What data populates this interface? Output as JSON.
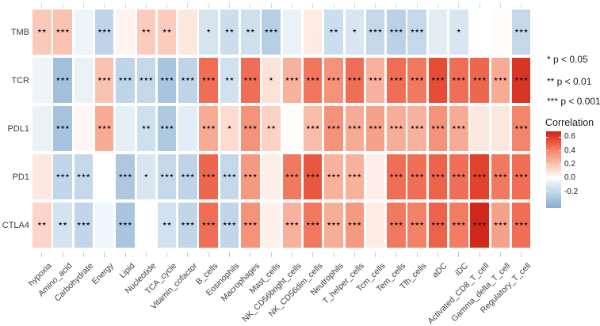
{
  "legend": {
    "sig_levels": [
      "* p < 0.05",
      "** p < 0.01",
      "*** p < 0.001"
    ],
    "correlation_title": "Correlation",
    "colorbar_ticks": [
      "0.6",
      "0.4",
      "0.2",
      "0.0",
      "-0.2"
    ]
  },
  "chart_data": {
    "type": "heatmap",
    "title": "",
    "rows": [
      "TMB",
      "TCR",
      "PDL1",
      "PD1",
      "CTLA4"
    ],
    "columns": [
      "hypoxia",
      "Amino_acid",
      "Carbohydrate",
      "Energy",
      "Lipid",
      "Nucleotide",
      "TCA_cycle",
      "Vitamin_cofactor",
      "B_cells",
      "Eosinophils",
      "Macrophages",
      "Mast_cells",
      "NK_CD56bright_cells",
      "NK_CD56dim_cells",
      "Neutrophils",
      "T_helper_cells",
      "Tcm_cells",
      "Tem_cells",
      "Tfh_cells",
      "aDC",
      "iDC",
      "Activated_CD8_T_cell",
      "Gamma_delta_T_cell",
      "Regulatory_T_cell"
    ],
    "values": [
      [
        0.18,
        0.2,
        -0.05,
        -0.22,
        0.04,
        0.17,
        0.17,
        0.08,
        -0.13,
        -0.17,
        -0.16,
        -0.25,
        -0.06,
        0.07,
        -0.17,
        -0.12,
        -0.2,
        -0.24,
        -0.2,
        -0.08,
        -0.12,
        0.0,
        0.01,
        -0.2
      ],
      [
        -0.05,
        -0.33,
        -0.06,
        0.2,
        -0.22,
        -0.2,
        -0.3,
        -0.22,
        0.46,
        -0.15,
        0.46,
        0.1,
        0.26,
        0.44,
        0.36,
        0.46,
        0.26,
        0.46,
        0.43,
        0.55,
        0.46,
        0.48,
        0.28,
        0.62
      ],
      [
        -0.06,
        -0.31,
        0.03,
        0.28,
        -0.07,
        -0.16,
        -0.28,
        -0.08,
        0.28,
        0.12,
        0.36,
        0.15,
        0.01,
        0.22,
        0.36,
        0.28,
        0.31,
        0.27,
        0.26,
        0.36,
        0.28,
        0.08,
        0.08,
        0.4
      ],
      [
        0.08,
        -0.21,
        -0.2,
        0.0,
        -0.29,
        -0.12,
        -0.2,
        -0.22,
        0.48,
        -0.2,
        0.34,
        0.06,
        0.43,
        0.52,
        0.26,
        0.26,
        0.06,
        0.46,
        0.46,
        0.49,
        0.46,
        0.58,
        0.43,
        0.46
      ],
      [
        0.14,
        -0.14,
        -0.21,
        -0.04,
        -0.3,
        0.0,
        -0.15,
        -0.21,
        0.46,
        -0.21,
        0.36,
        0.05,
        0.26,
        0.43,
        0.27,
        0.34,
        0.07,
        0.43,
        0.41,
        0.49,
        0.42,
        0.66,
        0.31,
        0.46
      ]
    ],
    "significance": [
      [
        "**",
        "***",
        "",
        "***",
        "",
        "**",
        "**",
        "",
        "*",
        "**",
        "**",
        "***",
        "",
        "",
        "**",
        "*",
        "***",
        "***",
        "***",
        "",
        "*",
        "",
        "",
        "***"
      ],
      [
        "",
        "***",
        "",
        "***",
        "***",
        "***",
        "***",
        "***",
        "***",
        "**",
        "***",
        "*",
        "***",
        "***",
        "***",
        "***",
        "***",
        "***",
        "***",
        "***",
        "***",
        "***",
        "***",
        "***"
      ],
      [
        "",
        "***",
        "",
        "***",
        "",
        "**",
        "***",
        "",
        "***",
        "*",
        "***",
        "**",
        "",
        "***",
        "***",
        "***",
        "***",
        "***",
        "***",
        "***",
        "***",
        "",
        "",
        "***"
      ],
      [
        "",
        "***",
        "***",
        "",
        "***",
        "*",
        "***",
        "***",
        "***",
        "***",
        "***",
        "",
        "***",
        "***",
        "***",
        "***",
        "",
        "***",
        "***",
        "***",
        "***",
        "***",
        "***",
        "***"
      ],
      [
        "**",
        "**",
        "***",
        "",
        "***",
        "",
        "**",
        "***",
        "***",
        "***",
        "***",
        "",
        "***",
        "***",
        "***",
        "***",
        "",
        "***",
        "***",
        "***",
        "***",
        "***",
        "***",
        "***"
      ]
    ],
    "significance_legend": {
      "*": "p < 0.05",
      "**": "p < 0.01",
      "***": "p < 0.001"
    },
    "colorscale": {
      "label": "Correlation",
      "domain": [
        -0.44,
        0.68
      ],
      "ticks": [
        0.6,
        0.4,
        0.2,
        0.0,
        -0.2
      ],
      "stops": [
        {
          "v": -0.44,
          "c": "#86abd0"
        },
        {
          "v": -0.2,
          "c": "#c4d8ea"
        },
        {
          "v": -0.08,
          "c": "#e3edf5"
        },
        {
          "v": 0.0,
          "c": "#ffffff"
        },
        {
          "v": 0.1,
          "c": "#fde2d8"
        },
        {
          "v": 0.22,
          "c": "#f9bca9"
        },
        {
          "v": 0.35,
          "c": "#f5977e"
        },
        {
          "v": 0.45,
          "c": "#f07258"
        },
        {
          "v": 0.55,
          "c": "#e74c35"
        },
        {
          "v": 0.68,
          "c": "#cd2217"
        }
      ]
    }
  }
}
